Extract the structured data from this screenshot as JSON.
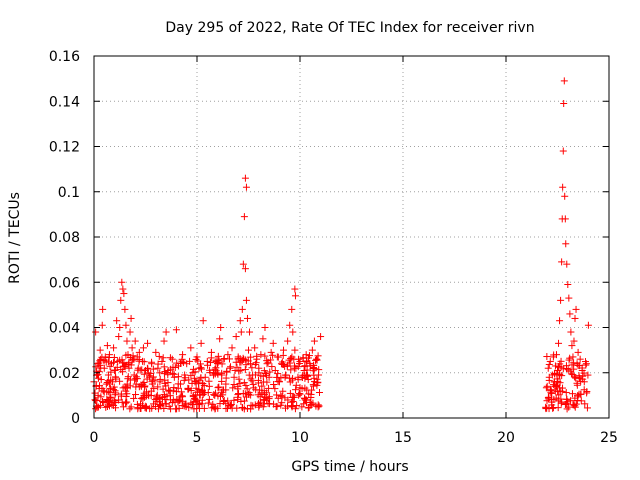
{
  "chart_data": {
    "type": "scatter",
    "title": "Day 295 of 2022, Rate Of TEC Index for receiver rivn",
    "xlabel": "GPS time / hours",
    "ylabel": "ROTI / TECUs",
    "xlim": [
      0,
      25
    ],
    "ylim": [
      0,
      0.16
    ],
    "x_ticks": [
      0,
      5,
      10,
      15,
      20,
      25
    ],
    "y_ticks": [
      0,
      0.02,
      0.04,
      0.06,
      0.08,
      0.1,
      0.12,
      0.14,
      0.16
    ],
    "x_tick_labels": [
      "0",
      "5",
      "10",
      "15",
      "20",
      "25"
    ],
    "y_tick_labels": [
      "0",
      "0.02",
      "0.04",
      "0.06",
      "0.08",
      "0.1",
      "0.12",
      "0.14",
      "0.16"
    ],
    "grid": true,
    "marker": "+",
    "color": "#ff0000",
    "series": [
      {
        "name": "ROTI",
        "points": [
          [
            0.0,
            0.016
          ],
          [
            0.05,
            0.011
          ],
          [
            0.08,
            0.038
          ],
          [
            0.1,
            0.014
          ],
          [
            0.15,
            0.019
          ],
          [
            0.2,
            0.01
          ],
          [
            0.25,
            0.013
          ],
          [
            0.3,
            0.03
          ],
          [
            0.35,
            0.017
          ],
          [
            0.4,
            0.041
          ],
          [
            0.42,
            0.048
          ],
          [
            0.45,
            0.012
          ],
          [
            0.5,
            0.022
          ],
          [
            0.55,
            0.027
          ],
          [
            0.6,
            0.015
          ],
          [
            0.65,
            0.032
          ],
          [
            0.7,
            0.019
          ],
          [
            0.75,
            0.028
          ],
          [
            0.8,
            0.013
          ],
          [
            0.85,
            0.024
          ],
          [
            0.9,
            0.016
          ],
          [
            0.95,
            0.031
          ],
          [
            1.0,
            0.021
          ],
          [
            1.05,
            0.018
          ],
          [
            1.1,
            0.043
          ],
          [
            1.15,
            0.025
          ],
          [
            1.2,
            0.036
          ],
          [
            1.25,
            0.04
          ],
          [
            1.3,
            0.052
          ],
          [
            1.35,
            0.06
          ],
          [
            1.4,
            0.057
          ],
          [
            1.45,
            0.055
          ],
          [
            1.5,
            0.048
          ],
          [
            1.55,
            0.041
          ],
          [
            1.6,
            0.034
          ],
          [
            1.65,
            0.028
          ],
          [
            1.7,
            0.022
          ],
          [
            1.75,
            0.038
          ],
          [
            1.8,
            0.044
          ],
          [
            1.85,
            0.031
          ],
          [
            1.9,
            0.026
          ],
          [
            1.95,
            0.019
          ],
          [
            2.0,
            0.034
          ],
          [
            2.05,
            0.015
          ],
          [
            2.1,
            0.027
          ],
          [
            2.15,
            0.022
          ],
          [
            2.2,
            0.029
          ],
          [
            2.3,
            0.014
          ],
          [
            2.4,
            0.031
          ],
          [
            2.5,
            0.021
          ],
          [
            2.6,
            0.033
          ],
          [
            2.7,
            0.018
          ],
          [
            2.8,
            0.024
          ],
          [
            2.9,
            0.013
          ],
          [
            3.0,
            0.029
          ],
          [
            3.1,
            0.022
          ],
          [
            3.2,
            0.016
          ],
          [
            3.3,
            0.025
          ],
          [
            3.4,
            0.034
          ],
          [
            3.5,
            0.038
          ],
          [
            3.6,
            0.021
          ],
          [
            3.7,
            0.012
          ],
          [
            3.8,
            0.026
          ],
          [
            3.9,
            0.018
          ],
          [
            4.0,
            0.039
          ],
          [
            4.1,
            0.023
          ],
          [
            4.2,
            0.015
          ],
          [
            4.3,
            0.028
          ],
          [
            4.4,
            0.019
          ],
          [
            4.5,
            0.024
          ],
          [
            4.6,
            0.013
          ],
          [
            4.7,
            0.031
          ],
          [
            4.8,
            0.02
          ],
          [
            4.9,
            0.016
          ],
          [
            5.0,
            0.027
          ],
          [
            5.1,
            0.022
          ],
          [
            5.2,
            0.033
          ],
          [
            5.3,
            0.043
          ],
          [
            5.4,
            0.018
          ],
          [
            5.5,
            0.025
          ],
          [
            5.6,
            0.014
          ],
          [
            5.7,
            0.029
          ],
          [
            5.8,
            0.02
          ],
          [
            5.9,
            0.011
          ],
          [
            6.0,
            0.024
          ],
          [
            6.1,
            0.035
          ],
          [
            6.15,
            0.04
          ],
          [
            6.2,
            0.019
          ],
          [
            6.3,
            0.026
          ],
          [
            6.4,
            0.015
          ],
          [
            6.5,
            0.028
          ],
          [
            6.6,
            0.022
          ],
          [
            6.7,
            0.031
          ],
          [
            6.8,
            0.018
          ],
          [
            6.9,
            0.036
          ],
          [
            7.0,
            0.027
          ],
          [
            7.1,
            0.043
          ],
          [
            7.15,
            0.038
          ],
          [
            7.2,
            0.048
          ],
          [
            7.25,
            0.068
          ],
          [
            7.3,
            0.089
          ],
          [
            7.35,
            0.066
          ],
          [
            7.4,
            0.052
          ],
          [
            7.45,
            0.044
          ],
          [
            7.5,
            0.03
          ],
          [
            7.55,
            0.038
          ],
          [
            7.6,
            0.024
          ],
          [
            7.7,
            0.019
          ],
          [
            7.8,
            0.031
          ],
          [
            7.9,
            0.026
          ],
          [
            8.0,
            0.022
          ],
          [
            8.1,
            0.028
          ],
          [
            8.2,
            0.035
          ],
          [
            8.3,
            0.04
          ],
          [
            8.4,
            0.024
          ],
          [
            8.5,
            0.018
          ],
          [
            8.6,
            0.029
          ],
          [
            8.7,
            0.033
          ],
          [
            8.8,
            0.021
          ],
          [
            8.9,
            0.027
          ],
          [
            9.0,
            0.016
          ],
          [
            9.1,
            0.024
          ],
          [
            9.2,
            0.03
          ],
          [
            9.3,
            0.019
          ],
          [
            9.4,
            0.034
          ],
          [
            9.5,
            0.041
          ],
          [
            9.6,
            0.048
          ],
          [
            9.65,
            0.038
          ],
          [
            9.7,
            0.026
          ],
          [
            9.75,
            0.03
          ],
          [
            9.8,
            0.022
          ],
          [
            9.9,
            0.018
          ],
          [
            10.0,
            0.025
          ],
          [
            10.1,
            0.013
          ],
          [
            10.2,
            0.021
          ],
          [
            10.3,
            0.028
          ],
          [
            10.4,
            0.017
          ],
          [
            10.5,
            0.023
          ],
          [
            10.6,
            0.03
          ],
          [
            10.7,
            0.034
          ],
          [
            10.8,
            0.026
          ],
          [
            10.9,
            0.019
          ],
          [
            11.0,
            0.036
          ],
          [
            7.35,
            0.106
          ],
          [
            7.4,
            0.102
          ],
          [
            9.75,
            0.057
          ],
          [
            9.78,
            0.054
          ],
          [
            22.0,
            0.014
          ],
          [
            22.05,
            0.022
          ],
          [
            22.1,
            0.018
          ],
          [
            22.15,
            0.025
          ],
          [
            22.2,
            0.012
          ],
          [
            22.25,
            0.019
          ],
          [
            22.3,
            0.027
          ],
          [
            22.35,
            0.016
          ],
          [
            22.4,
            0.023
          ],
          [
            22.45,
            0.028
          ],
          [
            22.5,
            0.021
          ],
          [
            22.55,
            0.033
          ],
          [
            22.6,
            0.043
          ],
          [
            22.65,
            0.052
          ],
          [
            22.7,
            0.069
          ],
          [
            22.73,
            0.088
          ],
          [
            22.75,
            0.102
          ],
          [
            22.78,
            0.118
          ],
          [
            22.8,
            0.139
          ],
          [
            22.83,
            0.149
          ],
          [
            22.85,
            0.098
          ],
          [
            22.88,
            0.088
          ],
          [
            22.9,
            0.077
          ],
          [
            22.95,
            0.068
          ],
          [
            23.0,
            0.059
          ],
          [
            23.05,
            0.053
          ],
          [
            23.1,
            0.046
          ],
          [
            23.15,
            0.038
          ],
          [
            23.2,
            0.032
          ],
          [
            23.25,
            0.027
          ],
          [
            23.3,
            0.034
          ],
          [
            23.35,
            0.044
          ],
          [
            23.4,
            0.048
          ],
          [
            23.45,
            0.024
          ],
          [
            23.5,
            0.029
          ],
          [
            23.55,
            0.018
          ],
          [
            23.6,
            0.026
          ],
          [
            23.7,
            0.021
          ],
          [
            23.8,
            0.016
          ],
          [
            23.9,
            0.024
          ],
          [
            24.0,
            0.041
          ]
        ]
      }
    ],
    "band": {
      "description": "dense red band of ROTI values",
      "segments": [
        [
          0.0,
          11.0
        ],
        [
          21.9,
          24.0
        ]
      ],
      "y_range": [
        0.004,
        0.028
      ]
    }
  }
}
